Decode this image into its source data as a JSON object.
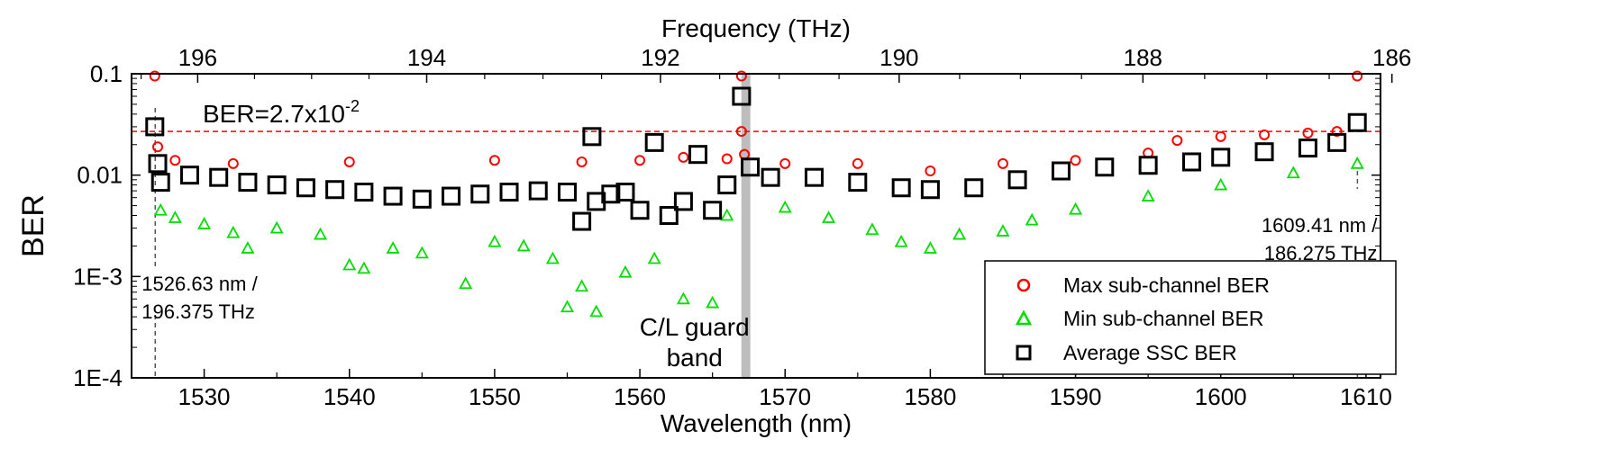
{
  "chart_data": {
    "type": "scatter",
    "xlabel": "Wavelength (nm)",
    "x2label": "Frequency (THz)",
    "ylabel": "BER",
    "xlim": [
      1525,
      1611
    ],
    "ylim": [
      0.0001,
      0.1
    ],
    "yscale": "log",
    "x_ticks": [
      "1530",
      "1540",
      "1550",
      "1560",
      "1570",
      "1580",
      "1590",
      "1600",
      "1610"
    ],
    "x2_ticks": [
      "196",
      "194",
      "192",
      "190",
      "188",
      "186"
    ],
    "y_ticks": [
      "1E-4",
      "1E-3",
      "0.01",
      "0.1"
    ],
    "threshold": {
      "value": 0.027,
      "label_base": "BER=2.7x10",
      "label_exp": "-2",
      "color": "#ff0000"
    },
    "guard_band": {
      "x": 1567.3,
      "label_line1": "C/L guard",
      "label_line2": "band",
      "color": "#bdbdbd"
    },
    "annotations": [
      {
        "line1": "1526.63 nm /",
        "line2": "196.375 THz",
        "x": 1526.63
      },
      {
        "line1": "1609.41 nm /",
        "line2": "186.275 THz",
        "x": 1609.41
      }
    ],
    "legend_position": "bottom-right",
    "series": [
      {
        "name": "Max sub-channel BER",
        "marker": "circle",
        "color": "#ff0000",
        "points": [
          [
            1526.6,
            0.095
          ],
          [
            1526.8,
            0.019
          ],
          [
            1528,
            0.014
          ],
          [
            1532,
            0.013
          ],
          [
            1540,
            0.0135
          ],
          [
            1550,
            0.014
          ],
          [
            1556,
            0.0135
          ],
          [
            1560,
            0.014
          ],
          [
            1563,
            0.015
          ],
          [
            1566,
            0.0145
          ],
          [
            1567,
            0.095
          ],
          [
            1567,
            0.027
          ],
          [
            1567.2,
            0.016
          ],
          [
            1570,
            0.013
          ],
          [
            1575,
            0.013
          ],
          [
            1580,
            0.011
          ],
          [
            1585,
            0.013
          ],
          [
            1590,
            0.014
          ],
          [
            1595,
            0.0165
          ],
          [
            1597,
            0.022
          ],
          [
            1600,
            0.024
          ],
          [
            1603,
            0.025
          ],
          [
            1606,
            0.026
          ],
          [
            1608,
            0.027
          ],
          [
            1609.4,
            0.095
          ]
        ]
      },
      {
        "name": "Min sub-channel BER",
        "marker": "triangle",
        "color": "#00dd00",
        "points": [
          [
            1527,
            0.0045
          ],
          [
            1528,
            0.0038
          ],
          [
            1530,
            0.0033
          ],
          [
            1532,
            0.0027
          ],
          [
            1533,
            0.0019
          ],
          [
            1535,
            0.003
          ],
          [
            1538,
            0.0026
          ],
          [
            1540,
            0.0013
          ],
          [
            1541,
            0.0012
          ],
          [
            1543,
            0.0019
          ],
          [
            1545,
            0.0017
          ],
          [
            1548,
            0.00085
          ],
          [
            1550,
            0.0022
          ],
          [
            1552,
            0.002
          ],
          [
            1554,
            0.0015
          ],
          [
            1555,
            0.0005
          ],
          [
            1556,
            0.0008
          ],
          [
            1557,
            0.00045
          ],
          [
            1559,
            0.0011
          ],
          [
            1561,
            0.0015
          ],
          [
            1563,
            0.0006
          ],
          [
            1565,
            0.00055
          ],
          [
            1566,
            0.004
          ],
          [
            1570,
            0.0048
          ],
          [
            1573,
            0.0038
          ],
          [
            1576,
            0.0029
          ],
          [
            1578,
            0.0022
          ],
          [
            1580,
            0.0019
          ],
          [
            1582,
            0.0026
          ],
          [
            1585,
            0.0028
          ],
          [
            1587,
            0.0036
          ],
          [
            1590,
            0.0046
          ],
          [
            1595,
            0.0062
          ],
          [
            1600,
            0.008
          ],
          [
            1605,
            0.0105
          ],
          [
            1609.4,
            0.013
          ]
        ]
      },
      {
        "name": "Average SSC BER",
        "marker": "square",
        "color": "#000000",
        "points": [
          [
            1526.6,
            0.03
          ],
          [
            1526.8,
            0.013
          ],
          [
            1527,
            0.0085
          ],
          [
            1529,
            0.01
          ],
          [
            1531,
            0.0095
          ],
          [
            1533,
            0.0085
          ],
          [
            1535,
            0.008
          ],
          [
            1537,
            0.0075
          ],
          [
            1539,
            0.0072
          ],
          [
            1541,
            0.0068
          ],
          [
            1543,
            0.0062
          ],
          [
            1545,
            0.0058
          ],
          [
            1547,
            0.0062
          ],
          [
            1549,
            0.0065
          ],
          [
            1551,
            0.0068
          ],
          [
            1553,
            0.007
          ],
          [
            1555,
            0.0068
          ],
          [
            1556,
            0.0035
          ],
          [
            1556.7,
            0.024
          ],
          [
            1557,
            0.0055
          ],
          [
            1558,
            0.0065
          ],
          [
            1559,
            0.0068
          ],
          [
            1560,
            0.0045
          ],
          [
            1561,
            0.021
          ],
          [
            1562,
            0.004
          ],
          [
            1563,
            0.0055
          ],
          [
            1564,
            0.016
          ],
          [
            1565,
            0.0045
          ],
          [
            1566,
            0.008
          ],
          [
            1567,
            0.06
          ],
          [
            1567.6,
            0.012
          ],
          [
            1569,
            0.0095
          ],
          [
            1572,
            0.0095
          ],
          [
            1575,
            0.0085
          ],
          [
            1578,
            0.0075
          ],
          [
            1580,
            0.0072
          ],
          [
            1583,
            0.0075
          ],
          [
            1586,
            0.009
          ],
          [
            1589,
            0.011
          ],
          [
            1592,
            0.012
          ],
          [
            1595,
            0.0125
          ],
          [
            1598,
            0.0135
          ],
          [
            1600,
            0.015
          ],
          [
            1603,
            0.017
          ],
          [
            1606,
            0.0185
          ],
          [
            1608,
            0.021
          ],
          [
            1609.4,
            0.033
          ]
        ]
      }
    ]
  }
}
